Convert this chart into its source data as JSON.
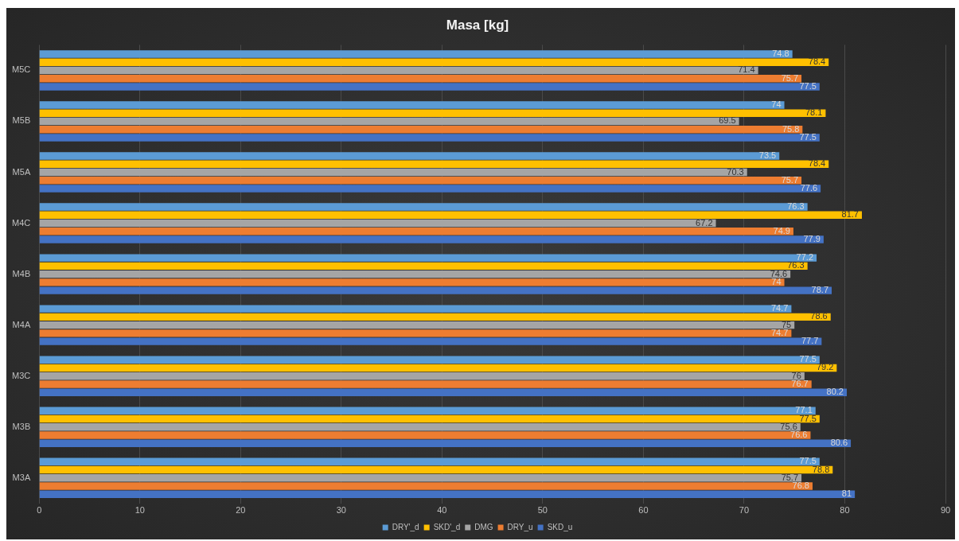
{
  "chart_data": {
    "type": "bar",
    "orientation": "horizontal",
    "title": "Masa [kg]",
    "categories": [
      "M5C",
      "M5B",
      "M5A",
      "M4C",
      "M4B",
      "M4A",
      "M3C",
      "M3B",
      "M3A"
    ],
    "series": [
      {
        "name": "DRY'_d",
        "color": "#5b9bd5",
        "values": [
          74.8,
          74,
          73.5,
          76.3,
          77.2,
          74.7,
          77.5,
          77.1,
          77.5
        ]
      },
      {
        "name": "SKD'_d",
        "color": "#ffc000",
        "values": [
          78.4,
          78.1,
          78.4,
          81.7,
          76.3,
          78.6,
          79.2,
          77.5,
          78.8
        ]
      },
      {
        "name": "DMG",
        "color": "#a5a5a5",
        "values": [
          71.4,
          69.5,
          70.3,
          67.2,
          74.6,
          75,
          76,
          75.6,
          75.7
        ]
      },
      {
        "name": "DRY_u",
        "color": "#ed7d31",
        "values": [
          75.7,
          75.8,
          75.7,
          74.9,
          74,
          74.7,
          76.7,
          76.6,
          76.8
        ]
      },
      {
        "name": "SKD_u",
        "color": "#4472c4",
        "values": [
          77.5,
          77.5,
          77.6,
          77.9,
          78.7,
          77.7,
          80.2,
          80.6,
          81
        ]
      }
    ],
    "xlim": [
      0,
      90
    ],
    "xticks": [
      0,
      10,
      20,
      30,
      40,
      50,
      60,
      70,
      80,
      90
    ],
    "grid": "x",
    "legend": "bottom",
    "data_labels": true
  }
}
